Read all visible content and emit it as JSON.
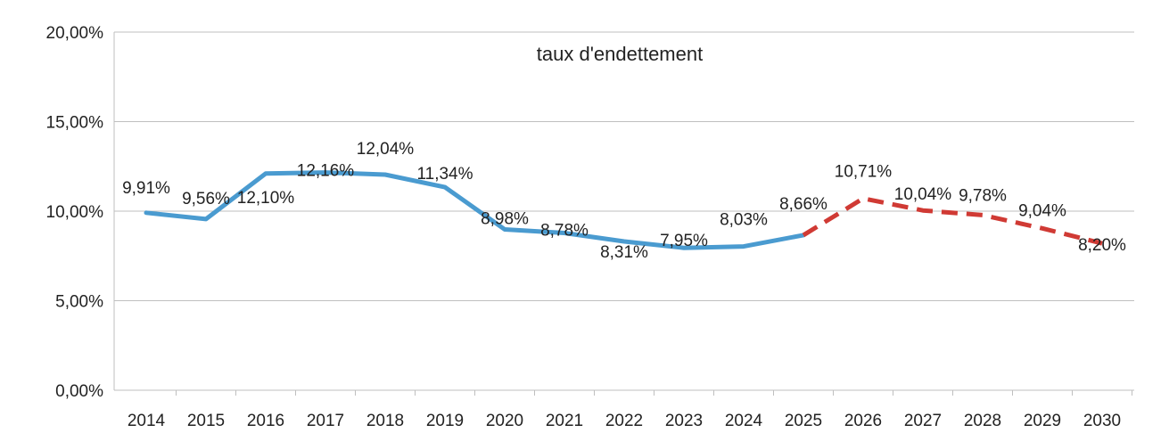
{
  "chart_data": {
    "type": "line",
    "title": "taux d'endettement",
    "xlabel": "",
    "ylabel": "",
    "ylim": [
      0,
      20
    ],
    "yticks": [
      0,
      5,
      10,
      15,
      20
    ],
    "ytick_labels": [
      "0,00%",
      "5,00%",
      "10,00%",
      "15,00%",
      "20,00%"
    ],
    "categories": [
      "2014",
      "2015",
      "2016",
      "2017",
      "2018",
      "2019",
      "2020",
      "2021",
      "2022",
      "2023",
      "2024",
      "2025",
      "2026",
      "2027",
      "2028",
      "2029",
      "2030"
    ],
    "values": [
      9.91,
      9.56,
      12.1,
      12.16,
      12.04,
      11.34,
      8.98,
      8.78,
      8.31,
      7.95,
      8.03,
      8.66,
      10.71,
      10.04,
      9.78,
      9.04,
      8.2
    ],
    "labels": [
      "9,91%",
      "9,56%",
      "12,10%",
      "12,16%",
      "12,04%",
      "11,34%",
      "8,98%",
      "8,78%",
      "8,31%",
      "7,95%",
      "8,03%",
      "8,66%",
      "10,71%",
      "10,04%",
      "9,78%",
      "9,04%",
      "8,20%"
    ],
    "actual_until": "2025",
    "colors": {
      "actual": "#4a9bd0",
      "projection": "#d03a34",
      "grid": "#bfbfbf"
    },
    "grid": true,
    "legend": "none"
  }
}
